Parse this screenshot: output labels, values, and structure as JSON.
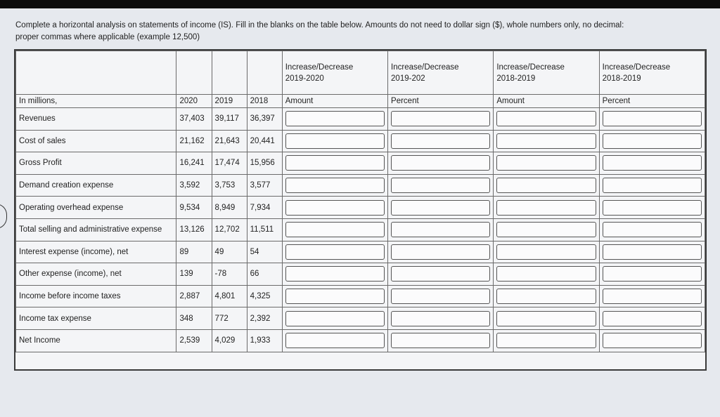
{
  "instructions": {
    "line1": "Complete a horizontal analysis on statements of income (IS). Fill in the blanks on the table below. Amounts do not need to dollar sign ($), whole numbers only, no decimal:",
    "line2": "proper commas where applicable (example 12,500)"
  },
  "table": {
    "header_groups": [
      {
        "line1": "Increase/Decrease",
        "line2": "2019-2020",
        "sub": "Amount"
      },
      {
        "line1": "Increase/Decrease",
        "line2": "2019-202",
        "sub": "Percent"
      },
      {
        "line1": "Increase/Decrease",
        "line2": "2018-2019",
        "sub": "Amount"
      },
      {
        "line1": "Increase/Decrease",
        "line2": "2018-2019",
        "sub": "Percent"
      }
    ],
    "unit_label": "In millions,",
    "years": [
      "2020",
      "2019",
      "2018"
    ],
    "rows": [
      {
        "label": "Revenues",
        "v2020": "37,403",
        "v2019": "39,117",
        "v2018": "36,397"
      },
      {
        "label": "Cost of sales",
        "v2020": "21,162",
        "v2019": "21,643",
        "v2018": "20,441"
      },
      {
        "label": "Gross Profit",
        "v2020": "16,241",
        "v2019": "17,474",
        "v2018": "15,956"
      },
      {
        "label": "Demand creation expense",
        "v2020": "3,592",
        "v2019": "3,753",
        "v2018": "3,577"
      },
      {
        "label": "Operating overhead expense",
        "v2020": "9,534",
        "v2019": "8,949",
        "v2018": "7,934"
      },
      {
        "label": "Total selling and administrative expense",
        "v2020": "13,126",
        "v2019": "12,702",
        "v2018": "11,511"
      },
      {
        "label": "Interest expense (income), net",
        "v2020": "89",
        "v2019": "49",
        "v2018": "54"
      },
      {
        "label": "Other expense (income), net",
        "v2020": "139",
        "v2019": "-78",
        "v2018": "66"
      },
      {
        "label": "Income before income taxes",
        "v2020": "2,887",
        "v2019": "4,801",
        "v2018": "4,325"
      },
      {
        "label": "Income tax expense",
        "v2020": "348",
        "v2019": "772",
        "v2018": "2,392"
      },
      {
        "label": "Net Income",
        "v2020": "2,539",
        "v2019": "4,029",
        "v2018": "1,933"
      }
    ]
  }
}
